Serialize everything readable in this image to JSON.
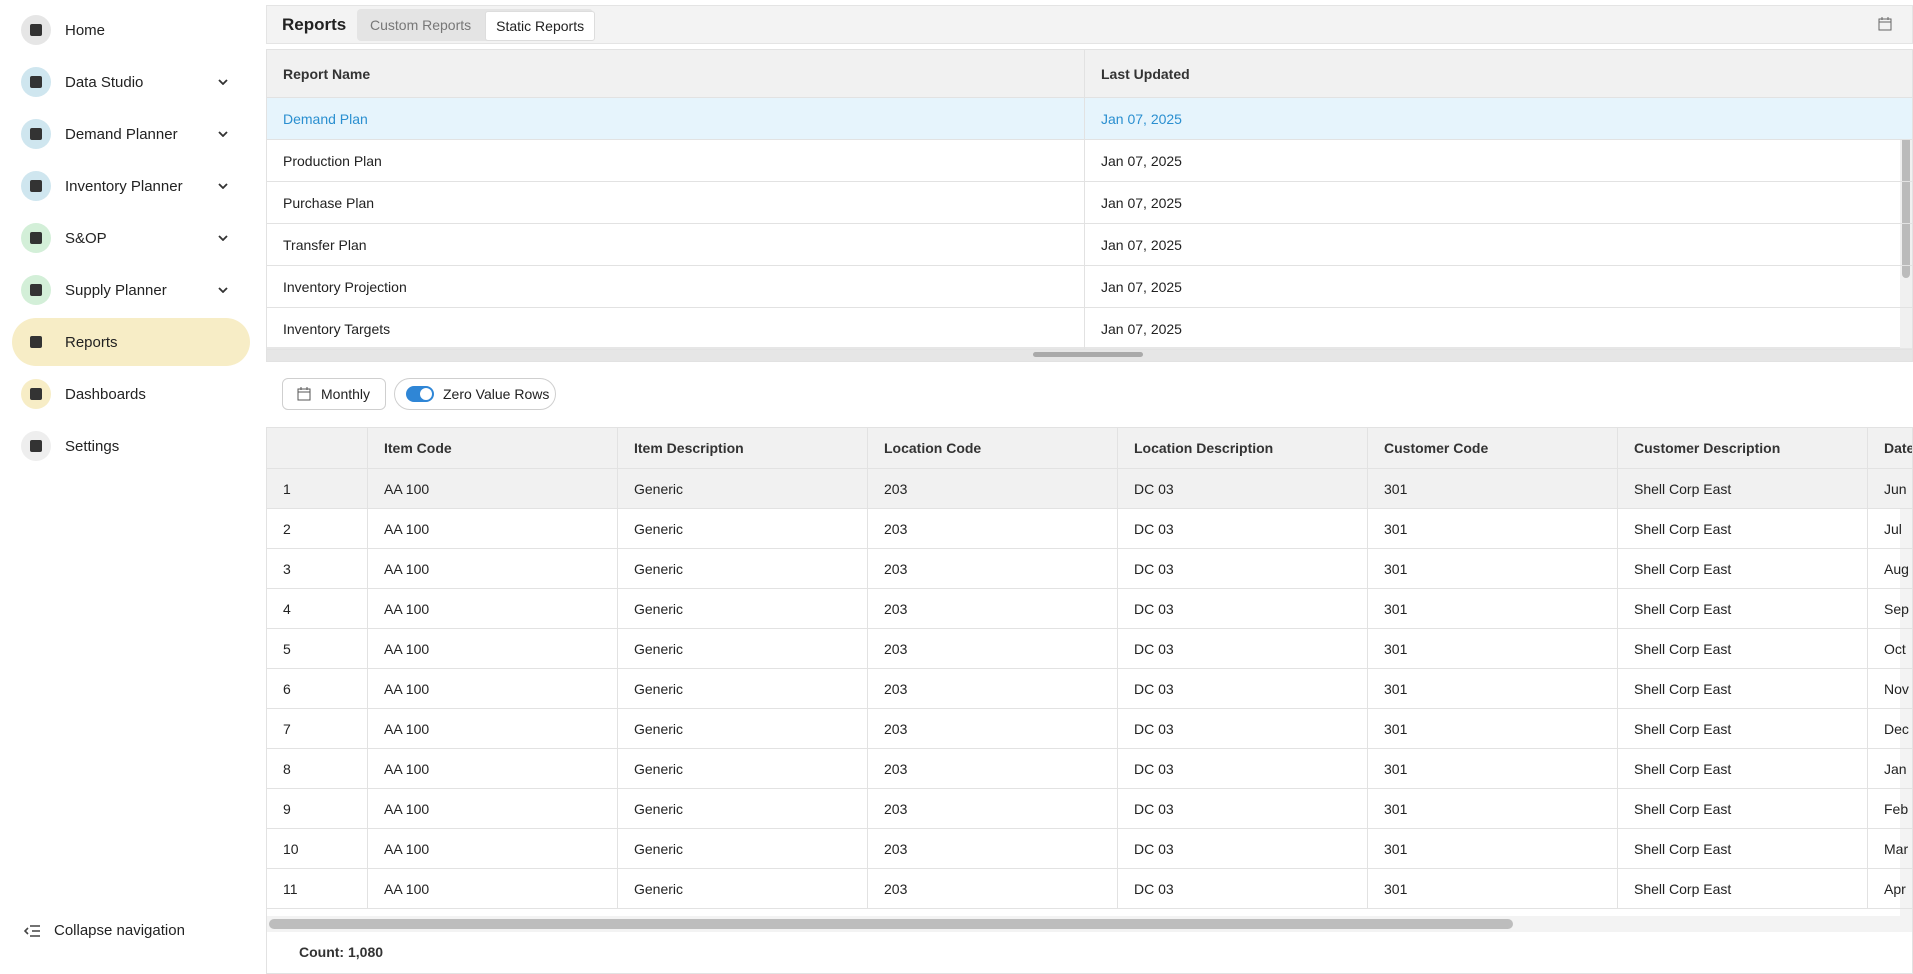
{
  "nav": {
    "items": [
      {
        "label": "Home",
        "color": "#e6e6e6",
        "expandable": false
      },
      {
        "label": "Data Studio",
        "color": "#cfe6ef",
        "expandable": true
      },
      {
        "label": "Demand Planner",
        "color": "#cfe6ef",
        "expandable": true
      },
      {
        "label": "Inventory Planner",
        "color": "#cfe6ef",
        "expandable": true
      },
      {
        "label": "S&OP",
        "color": "#d3efd8",
        "expandable": true
      },
      {
        "label": "Supply Planner",
        "color": "#d3efd8",
        "expandable": true
      },
      {
        "label": "Reports",
        "color": "#f7edc6",
        "expandable": false
      },
      {
        "label": "Dashboards",
        "color": "#f7edc6",
        "expandable": false
      },
      {
        "label": "Settings",
        "color": "#eeeeee",
        "expandable": false
      }
    ],
    "active": 6,
    "collapse": "Collapse navigation"
  },
  "header": {
    "title": "Reports",
    "tabs": [
      "Custom Reports",
      "Static Reports"
    ],
    "active_tab": 1
  },
  "reports": {
    "columns": [
      "Report Name",
      "Last Updated"
    ],
    "rows": [
      [
        "Demand Plan",
        "Jan 07, 2025"
      ],
      [
        "Production Plan",
        "Jan 07, 2025"
      ],
      [
        "Purchase Plan",
        "Jan 07, 2025"
      ],
      [
        "Transfer Plan",
        "Jan 07, 2025"
      ],
      [
        "Inventory Projection",
        "Jan 07, 2025"
      ],
      [
        "Inventory Targets",
        "Jan 07, 2025"
      ]
    ],
    "selected_row": 0
  },
  "toolbar": {
    "period": "Monthly",
    "toggle": {
      "label": "Zero Value Rows",
      "on": true
    }
  },
  "table": {
    "columns": [
      "Item Code",
      "Item Description",
      "Location Code",
      "Location Description",
      "Customer Code",
      "Customer Description",
      "Date"
    ],
    "rows": [
      [
        "1",
        "AA 100",
        "Generic",
        "203",
        "DC 03",
        "301",
        "Shell Corp East",
        "Jun"
      ],
      [
        "2",
        "AA 100",
        "Generic",
        "203",
        "DC 03",
        "301",
        "Shell Corp East",
        "Jul"
      ],
      [
        "3",
        "AA 100",
        "Generic",
        "203",
        "DC 03",
        "301",
        "Shell Corp East",
        "Aug"
      ],
      [
        "4",
        "AA 100",
        "Generic",
        "203",
        "DC 03",
        "301",
        "Shell Corp East",
        "Sep"
      ],
      [
        "5",
        "AA 100",
        "Generic",
        "203",
        "DC 03",
        "301",
        "Shell Corp East",
        "Oct"
      ],
      [
        "6",
        "AA 100",
        "Generic",
        "203",
        "DC 03",
        "301",
        "Shell Corp East",
        "Nov"
      ],
      [
        "7",
        "AA 100",
        "Generic",
        "203",
        "DC 03",
        "301",
        "Shell Corp East",
        "Dec"
      ],
      [
        "8",
        "AA 100",
        "Generic",
        "203",
        "DC 03",
        "301",
        "Shell Corp East",
        "Jan"
      ],
      [
        "9",
        "AA 100",
        "Generic",
        "203",
        "DC 03",
        "301",
        "Shell Corp East",
        "Feb"
      ],
      [
        "10",
        "AA 100",
        "Generic",
        "203",
        "DC 03",
        "301",
        "Shell Corp East",
        "Mar"
      ],
      [
        "11",
        "AA 100",
        "Generic",
        "203",
        "DC 03",
        "301",
        "Shell Corp East",
        "Apr"
      ]
    ],
    "count": "Count: 1,080"
  }
}
